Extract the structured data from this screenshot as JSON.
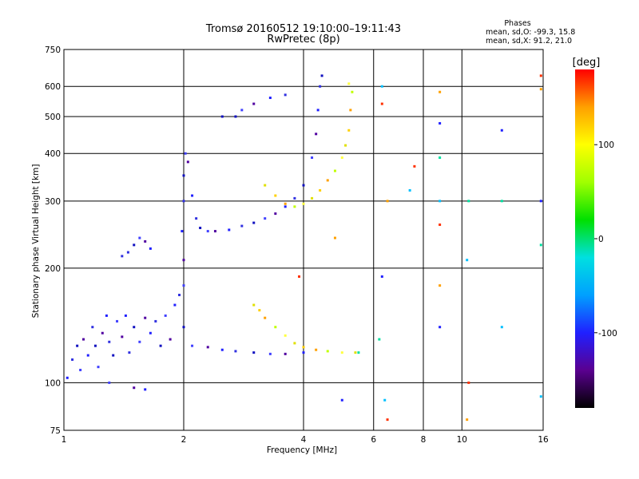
{
  "chart_data": {
    "type": "scatter",
    "title": "Tromsø 20160512 19:10:00–19:11:43",
    "subtitle": "RwPretec (8p)",
    "xlabel": "Frequency [MHz]",
    "ylabel": "Stationary phase Virtual Height [km]",
    "x_scale": "log",
    "y_scale": "log",
    "xlim": [
      1,
      16
    ],
    "ylim": [
      75,
      750
    ],
    "x_ticks": [
      1,
      2,
      4,
      6,
      8,
      10,
      16
    ],
    "y_ticks": [
      75,
      100,
      200,
      300,
      400,
      500,
      600,
      750
    ],
    "x_grid": [
      2,
      4,
      6,
      8,
      10
    ],
    "y_grid": [
      100,
      200,
      300,
      400,
      500,
      600
    ],
    "grid": true,
    "phases_box": {
      "heading": "Phases",
      "line1": "mean, sd,O: -99.3, 15.8",
      "line2": "mean, sd,X:  91.2, 21.0"
    },
    "colorbar": {
      "label": "[deg]",
      "ticks": [
        100,
        0,
        -100
      ],
      "range": [
        -180,
        180
      ],
      "colors_bottom_to_top": [
        "#000000",
        "#5a0090",
        "#2020ff",
        "#00a0ff",
        "#00e0e0",
        "#00e000",
        "#a0ff00",
        "#ffff00",
        "#ffa000",
        "#ff0000"
      ]
    },
    "series": [
      {
        "color_hint": "O-mode (blue)",
        "points": [
          [
            1.02,
            103
          ],
          [
            1.05,
            115
          ],
          [
            1.08,
            125
          ],
          [
            1.1,
            108
          ],
          [
            1.12,
            130
          ],
          [
            1.15,
            118
          ],
          [
            1.18,
            140
          ],
          [
            1.2,
            125
          ],
          [
            1.22,
            110
          ],
          [
            1.25,
            135
          ],
          [
            1.28,
            150
          ],
          [
            1.3,
            128
          ],
          [
            1.33,
            118
          ],
          [
            1.36,
            145
          ],
          [
            1.4,
            132
          ],
          [
            1.43,
            150
          ],
          [
            1.46,
            120
          ],
          [
            1.5,
            140
          ],
          [
            1.55,
            128
          ],
          [
            1.6,
            148
          ],
          [
            1.65,
            135
          ],
          [
            1.7,
            145
          ],
          [
            1.75,
            125
          ],
          [
            1.8,
            150
          ],
          [
            1.85,
            130
          ],
          [
            1.9,
            160
          ],
          [
            1.95,
            170
          ],
          [
            2.0,
            140
          ],
          [
            2.0,
            180
          ],
          [
            2.0,
            210
          ],
          [
            1.98,
            250
          ],
          [
            2.0,
            300
          ],
          [
            2.0,
            350
          ],
          [
            2.02,
            400
          ],
          [
            2.05,
            380
          ],
          [
            2.1,
            310
          ],
          [
            2.15,
            270
          ],
          [
            2.2,
            255
          ],
          [
            2.3,
            250
          ],
          [
            2.4,
            250
          ],
          [
            2.6,
            252
          ],
          [
            2.8,
            258
          ],
          [
            3.0,
            263
          ],
          [
            3.2,
            270
          ],
          [
            3.4,
            278
          ],
          [
            3.6,
            290
          ],
          [
            3.8,
            305
          ],
          [
            4.0,
            330
          ],
          [
            4.2,
            390
          ],
          [
            4.3,
            450
          ],
          [
            4.35,
            520
          ],
          [
            4.4,
            600
          ],
          [
            4.45,
            640
          ],
          [
            2.1,
            125
          ],
          [
            2.3,
            124
          ],
          [
            2.5,
            122
          ],
          [
            2.7,
            121
          ],
          [
            3.0,
            120
          ],
          [
            3.3,
            119
          ],
          [
            3.6,
            119
          ],
          [
            4.0,
            120
          ],
          [
            1.45,
            220
          ],
          [
            1.5,
            230
          ],
          [
            1.55,
            240
          ],
          [
            1.6,
            235
          ],
          [
            1.65,
            225
          ],
          [
            1.4,
            215
          ],
          [
            2.5,
            500
          ],
          [
            2.8,
            520
          ],
          [
            3.0,
            540
          ],
          [
            3.3,
            560
          ],
          [
            3.6,
            570
          ],
          [
            2.7,
            500
          ],
          [
            1.3,
            100
          ],
          [
            1.5,
            97
          ],
          [
            1.6,
            96
          ]
        ]
      },
      {
        "color_hint": "X-mode (yellow/orange)",
        "points": [
          [
            3.2,
            330
          ],
          [
            3.4,
            310
          ],
          [
            3.6,
            295
          ],
          [
            3.8,
            290
          ],
          [
            4.0,
            295
          ],
          [
            4.2,
            305
          ],
          [
            4.4,
            320
          ],
          [
            4.6,
            340
          ],
          [
            4.8,
            360
          ],
          [
            5.0,
            390
          ],
          [
            5.1,
            420
          ],
          [
            5.2,
            460
          ],
          [
            5.25,
            520
          ],
          [
            5.3,
            580
          ],
          [
            5.2,
            610
          ],
          [
            3.0,
            160
          ],
          [
            3.1,
            155
          ],
          [
            3.2,
            148
          ],
          [
            3.4,
            140
          ],
          [
            3.6,
            133
          ],
          [
            3.8,
            127
          ],
          [
            4.0,
            124
          ],
          [
            4.3,
            122
          ],
          [
            4.6,
            121
          ],
          [
            5.0,
            120
          ],
          [
            5.4,
            120
          ]
        ]
      },
      {
        "color_hint": "scattered echoes",
        "points": [
          [
            6.3,
            600
          ],
          [
            6.3,
            540
          ],
          [
            6.5,
            300
          ],
          [
            6.3,
            190
          ],
          [
            6.2,
            130
          ],
          [
            6.4,
            90
          ],
          [
            6.5,
            80
          ],
          [
            8.8,
            580
          ],
          [
            8.8,
            480
          ],
          [
            8.8,
            390
          ],
          [
            8.8,
            300
          ],
          [
            8.8,
            260
          ],
          [
            8.8,
            180
          ],
          [
            8.8,
            140
          ],
          [
            10.4,
            300
          ],
          [
            10.3,
            210
          ],
          [
            10.4,
            100
          ],
          [
            10.3,
            80
          ],
          [
            12.6,
            460
          ],
          [
            12.6,
            300
          ],
          [
            12.6,
            140
          ],
          [
            15.8,
            640
          ],
          [
            15.8,
            590
          ],
          [
            15.8,
            300
          ],
          [
            15.8,
            230
          ],
          [
            15.8,
            92
          ],
          [
            3.9,
            190
          ],
          [
            4.8,
            240
          ],
          [
            5.0,
            90
          ],
          [
            5.5,
            120
          ],
          [
            7.4,
            320
          ],
          [
            7.6,
            370
          ]
        ]
      }
    ]
  }
}
